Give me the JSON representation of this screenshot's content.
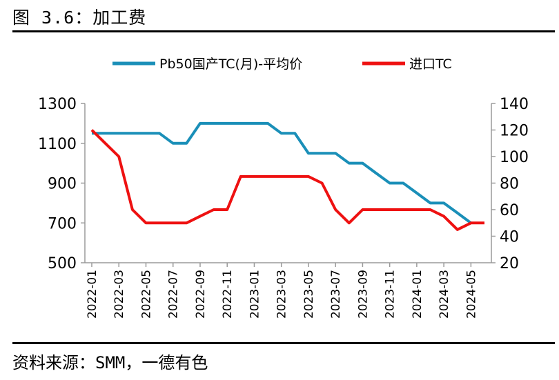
{
  "figure": {
    "title": "图 3.6：加工费",
    "source": "资料来源：SMM，一德有色"
  },
  "chart_data": {
    "type": "line",
    "x": [
      "2022-01",
      "2022-02",
      "2022-03",
      "2022-04",
      "2022-05",
      "2022-06",
      "2022-07",
      "2022-08",
      "2022-09",
      "2022-10",
      "2022-11",
      "2022-12",
      "2023-01",
      "2023-02",
      "2023-03",
      "2023-04",
      "2023-05",
      "2023-06",
      "2023-07",
      "2023-08",
      "2023-09",
      "2023-10",
      "2023-11",
      "2023-12",
      "2024-01",
      "2024-02",
      "2024-03",
      "2024-04",
      "2024-05",
      "2024-06"
    ],
    "x_tick_labels": [
      "2022-01",
      "2022-03",
      "2022-05",
      "2022-07",
      "2022-09",
      "2022-11",
      "2023-01",
      "2023-03",
      "2023-05",
      "2023-07",
      "2023-09",
      "2023-11",
      "2024-01",
      "2024-03",
      "2024-05"
    ],
    "y_left": {
      "min": 500,
      "max": 1300,
      "ticks": [
        500,
        700,
        900,
        1100,
        1300
      ]
    },
    "y_right": {
      "min": 20,
      "max": 140,
      "ticks": [
        20,
        40,
        60,
        80,
        100,
        120,
        140
      ]
    },
    "legend_position": "top",
    "series": [
      {
        "name": "Pb50国产TC(月)-平均价",
        "axis": "left",
        "color": "#1a8fb8",
        "values": [
          1150,
          1150,
          1150,
          1150,
          1150,
          1150,
          1100,
          1100,
          1200,
          1200,
          1200,
          1200,
          1200,
          1200,
          1150,
          1150,
          1050,
          1050,
          1050,
          1000,
          1000,
          950,
          900,
          900,
          850,
          800,
          800,
          750,
          700,
          null
        ]
      },
      {
        "name": "进口TC",
        "axis": "right",
        "color": "#ee1111",
        "values": [
          120,
          110,
          100,
          60,
          50,
          50,
          50,
          50,
          55,
          60,
          60,
          85,
          85,
          85,
          85,
          85,
          85,
          80,
          60,
          50,
          60,
          60,
          60,
          60,
          60,
          60,
          55,
          45,
          50,
          50
        ]
      }
    ]
  }
}
